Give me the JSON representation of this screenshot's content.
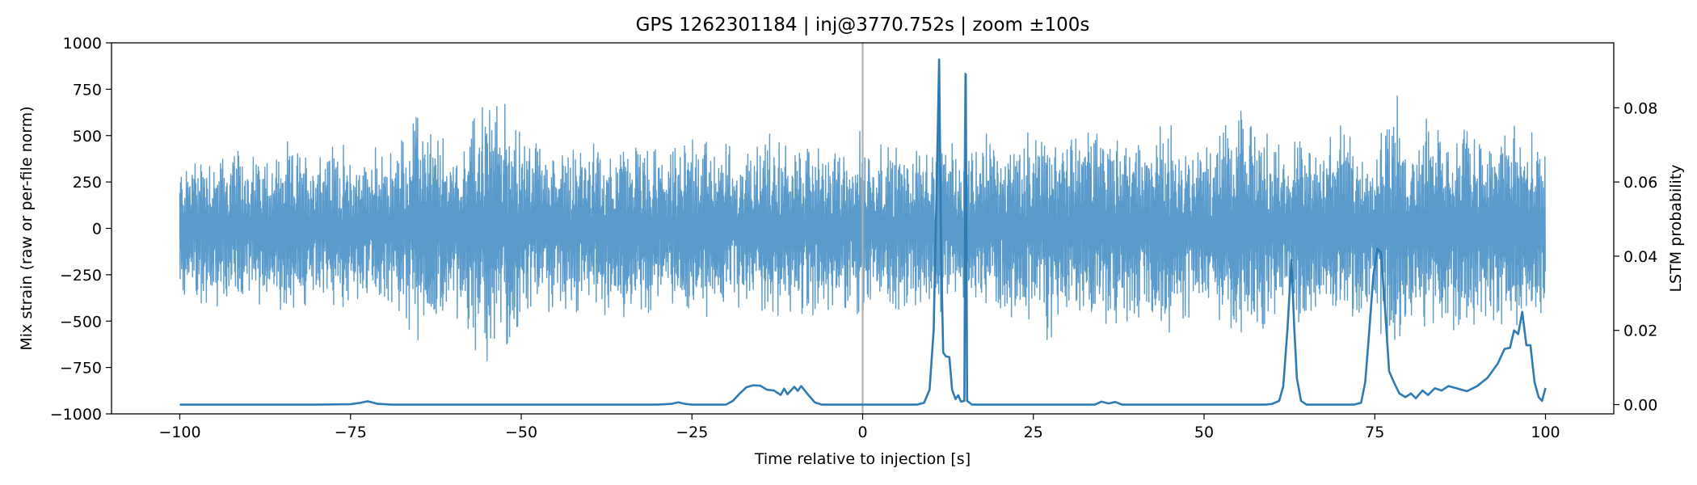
{
  "chart_data": {
    "type": "line",
    "title": "GPS 1262301184 | inj@3770.752s | zoom ±100s",
    "xlabel": "Time relative to injection [s]",
    "ylabel_left": "Mix strain (raw or per-file norm)",
    "ylabel_right": "LSTM probability",
    "xlim": [
      -110,
      110
    ],
    "ylim_left": [
      -1000,
      1000
    ],
    "ylim_right": [
      -0.0025,
      0.0975
    ],
    "x_ticks": [
      -100,
      -75,
      -50,
      -25,
      0,
      25,
      50,
      75,
      100
    ],
    "x_tick_labels": [
      "−100",
      "−75",
      "−50",
      "−25",
      "0",
      "25",
      "50",
      "75",
      "100"
    ],
    "y_left_ticks": [
      1000,
      750,
      500,
      250,
      0,
      -250,
      -500,
      -750,
      -1000
    ],
    "y_left_tick_labels": [
      "1000",
      "750",
      "500",
      "250",
      "0",
      "−250",
      "−500",
      "−750",
      "−1000"
    ],
    "y_right_ticks": [
      0.0,
      0.02,
      0.04,
      0.06,
      0.08
    ],
    "y_right_tick_labels": [
      "0.00",
      "0.02",
      "0.04",
      "0.06",
      "0.08"
    ],
    "vline_x": 0,
    "grid": false,
    "colors": {
      "strain": "#5b9bcb",
      "prob": "#2e7bb4",
      "vline": "#b0b0b0"
    },
    "series": [
      {
        "axis": "left",
        "style": "dense-oscillation",
        "range": [
          -100,
          100
        ],
        "envelope": [
          [
            -100,
            380
          ],
          [
            -97,
            480
          ],
          [
            -94,
            450
          ],
          [
            -91,
            470
          ],
          [
            -88,
            440
          ],
          [
            -85,
            480
          ],
          [
            -82,
            470
          ],
          [
            -80,
            500
          ],
          [
            -77,
            510
          ],
          [
            -75,
            420
          ],
          [
            -72,
            470
          ],
          [
            -70,
            430
          ],
          [
            -67,
            570
          ],
          [
            -65,
            700
          ],
          [
            -62,
            550
          ],
          [
            -60,
            480
          ],
          [
            -57,
            680
          ],
          [
            -55,
            790
          ],
          [
            -53,
            760
          ],
          [
            -50,
            580
          ],
          [
            -48,
            540
          ],
          [
            -45,
            470
          ],
          [
            -42,
            500
          ],
          [
            -40,
            480
          ],
          [
            -37,
            480
          ],
          [
            -35,
            530
          ],
          [
            -32,
            490
          ],
          [
            -30,
            450
          ],
          [
            -27,
            460
          ],
          [
            -25,
            630
          ],
          [
            -22,
            520
          ],
          [
            -20,
            500
          ],
          [
            -17,
            460
          ],
          [
            -15,
            600
          ],
          [
            -12,
            510
          ],
          [
            -10,
            480
          ],
          [
            -7,
            540
          ],
          [
            -5,
            470
          ],
          [
            -2,
            500
          ],
          [
            0,
            560
          ],
          [
            2,
            520
          ],
          [
            5,
            500
          ],
          [
            7,
            480
          ],
          [
            9,
            500
          ],
          [
            12,
            480
          ],
          [
            15,
            470
          ],
          [
            18,
            570
          ],
          [
            20,
            500
          ],
          [
            22,
            540
          ],
          [
            25,
            560
          ],
          [
            27,
            640
          ],
          [
            30,
            500
          ],
          [
            33,
            660
          ],
          [
            36,
            600
          ],
          [
            38,
            600
          ],
          [
            40,
            520
          ],
          [
            43,
            600
          ],
          [
            46,
            680
          ],
          [
            49,
            470
          ],
          [
            52,
            560
          ],
          [
            55,
            640
          ],
          [
            58,
            700
          ],
          [
            60,
            540
          ],
          [
            62,
            480
          ],
          [
            65,
            620
          ],
          [
            68,
            560
          ],
          [
            70,
            600
          ],
          [
            72,
            540
          ],
          [
            75,
            580
          ],
          [
            78,
            780
          ],
          [
            80,
            570
          ],
          [
            83,
            720
          ],
          [
            85,
            560
          ],
          [
            87,
            600
          ],
          [
            90,
            640
          ],
          [
            92,
            560
          ],
          [
            94,
            620
          ],
          [
            96,
            640
          ],
          [
            98,
            520
          ],
          [
            100,
            500
          ]
        ],
        "spikes": [
          [
            11.2,
            910
          ],
          [
            15.0,
            840
          ]
        ]
      },
      {
        "axis": "right",
        "points": [
          [
            -100,
            0.0
          ],
          [
            -80,
            0.0
          ],
          [
            -75,
            0.0001
          ],
          [
            -73.5,
            0.0005
          ],
          [
            -72.5,
            0.0009
          ],
          [
            -71,
            0.0002
          ],
          [
            -69,
            0.0
          ],
          [
            -30,
            0.0
          ],
          [
            -28,
            0.0002
          ],
          [
            -27,
            0.0006
          ],
          [
            -26,
            0.0002
          ],
          [
            -25,
            0.0
          ],
          [
            -20,
            0.0
          ],
          [
            -19,
            0.001
          ],
          [
            -18,
            0.003
          ],
          [
            -17,
            0.0047
          ],
          [
            -16,
            0.0052
          ],
          [
            -15,
            0.0051
          ],
          [
            -14,
            0.004
          ],
          [
            -13,
            0.0038
          ],
          [
            -12,
            0.0026
          ],
          [
            -11.5,
            0.0043
          ],
          [
            -11,
            0.0028
          ],
          [
            -10,
            0.0048
          ],
          [
            -9.5,
            0.0037
          ],
          [
            -9,
            0.005
          ],
          [
            -8,
            0.0027
          ],
          [
            -7,
            0.0006
          ],
          [
            -6,
            0.0
          ],
          [
            0,
            0.0
          ],
          [
            8,
            0.0
          ],
          [
            9,
            0.0005
          ],
          [
            9.8,
            0.004
          ],
          [
            10.4,
            0.02
          ],
          [
            10.9,
            0.064
          ],
          [
            11.2,
            0.093
          ],
          [
            11.5,
            0.04
          ],
          [
            11.8,
            0.014
          ],
          [
            12.2,
            0.013
          ],
          [
            12.7,
            0.0128
          ],
          [
            13.1,
            0.004
          ],
          [
            13.6,
            0.0015
          ],
          [
            14.0,
            0.0025
          ],
          [
            14.4,
            0.0008
          ],
          [
            14.9,
            0.001
          ],
          [
            15.1,
            0.089
          ],
          [
            15.3,
            0.001
          ],
          [
            16,
            0.0
          ],
          [
            34,
            0.0
          ],
          [
            35,
            0.0008
          ],
          [
            36,
            0.0003
          ],
          [
            37,
            0.0007
          ],
          [
            38,
            0.0
          ],
          [
            59,
            0.0
          ],
          [
            60,
            0.0002
          ],
          [
            61,
            0.001
          ],
          [
            61.6,
            0.005
          ],
          [
            62.2,
            0.02
          ],
          [
            62.8,
            0.039
          ],
          [
            63.2,
            0.021
          ],
          [
            63.6,
            0.007
          ],
          [
            64.2,
            0.001
          ],
          [
            65,
            0.0
          ],
          [
            72,
            0.0
          ],
          [
            73,
            0.0005
          ],
          [
            73.6,
            0.006
          ],
          [
            74.2,
            0.02
          ],
          [
            74.8,
            0.035
          ],
          [
            75.4,
            0.042
          ],
          [
            75.9,
            0.041
          ],
          [
            76.5,
            0.026
          ],
          [
            77.1,
            0.009
          ],
          [
            77.8,
            0.006
          ],
          [
            78.6,
            0.003
          ],
          [
            79.5,
            0.002
          ],
          [
            80.3,
            0.003
          ],
          [
            81,
            0.0017
          ],
          [
            82,
            0.0038
          ],
          [
            82.8,
            0.0026
          ],
          [
            83.8,
            0.0044
          ],
          [
            84.8,
            0.0038
          ],
          [
            85.8,
            0.005
          ],
          [
            87,
            0.0044
          ],
          [
            88.5,
            0.0036
          ],
          [
            90,
            0.005
          ],
          [
            91.5,
            0.0072
          ],
          [
            93,
            0.011
          ],
          [
            94,
            0.015
          ],
          [
            94.8,
            0.0153
          ],
          [
            95.4,
            0.02
          ],
          [
            96,
            0.019
          ],
          [
            96.6,
            0.025
          ],
          [
            97.2,
            0.016
          ],
          [
            97.8,
            0.016
          ],
          [
            98.4,
            0.006
          ],
          [
            99,
            0.002
          ],
          [
            99.5,
            0.001
          ],
          [
            100,
            0.0045
          ]
        ]
      }
    ]
  }
}
